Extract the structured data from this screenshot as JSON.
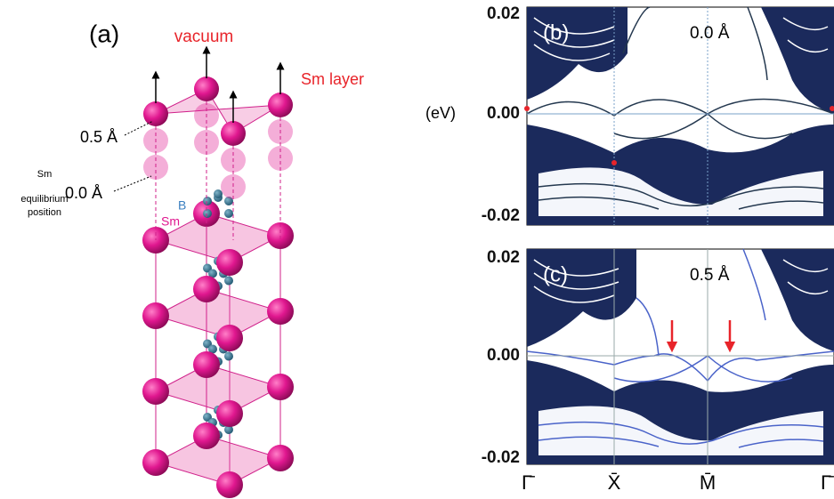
{
  "panel_a": {
    "label": "(a)",
    "vacuum": "vacuum",
    "sm_layer": "Sm layer",
    "offset_top": "0.5 Å",
    "offset_bottom": "0.0 Å",
    "sm_equilibrium": [
      "Sm",
      "equilibrium",
      "position"
    ],
    "sm": "Sm",
    "b": "B"
  },
  "panel_b": {
    "label": "(b)",
    "displacement": "0.0 Å",
    "y_axis_label": "(eV)",
    "yticks": [
      "0.02",
      "0.00",
      "-0.02"
    ]
  },
  "panel_c": {
    "label": "(c)",
    "displacement": "0.5 Å",
    "yticks": [
      "0.02",
      "0.00",
      "-0.02"
    ]
  },
  "k_path": [
    "Γ̄",
    "X̄",
    "M̄",
    "Γ̄"
  ]
}
